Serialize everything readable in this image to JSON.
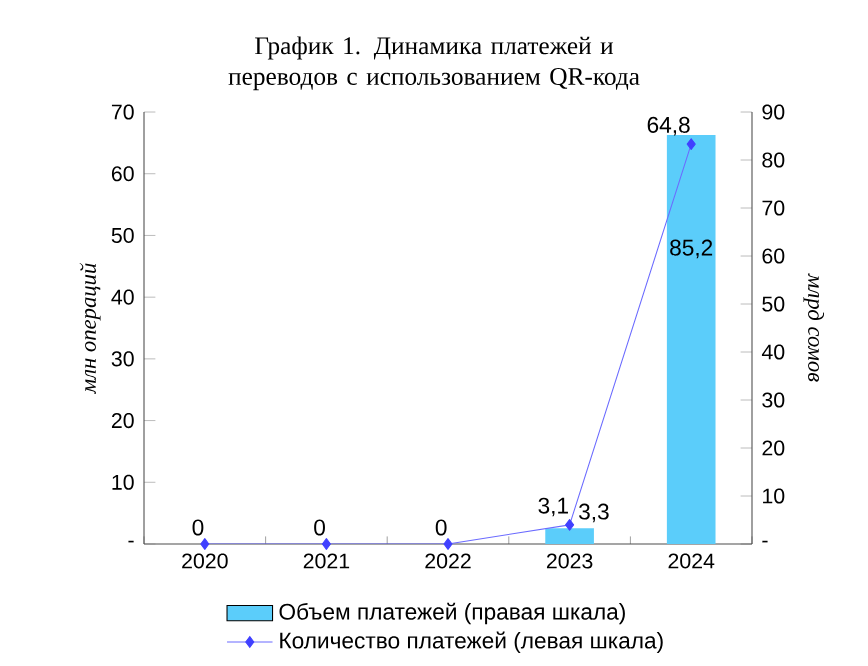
{
  "chart_data": {
    "type": "bar",
    "title": "График 1. Динамика платежей и переводов с использованием QR-кода",
    "ylabel": "млн операций",
    "y2label": "млрд сомов",
    "categories": [
      "2020",
      "2021",
      "2022",
      "2023",
      "2024"
    ],
    "series": [
      {
        "name": "Объем платежей (правая шкала)",
        "axis": "y2",
        "color": "#5bcdfa",
        "values": [
          0,
          0,
          0,
          3.3,
          85.2
        ],
        "value_labels": [
          null,
          null,
          null,
          "3,3",
          "85,2"
        ]
      },
      {
        "name": "Количество платежей (левая шкала)",
        "type": "line",
        "color": "#6b6bff",
        "marker": "diamond",
        "values": [
          0,
          0,
          0,
          3.1,
          64.8
        ],
        "value_labels": [
          "0",
          "0",
          "0",
          "3,1",
          "64,8"
        ]
      }
    ],
    "ylim": [
      0,
      70
    ],
    "yticks": [
      {
        "value": 0,
        "label": "-"
      },
      10,
      20,
      30,
      40,
      50,
      60,
      70
    ],
    "y2lim": [
      0,
      90
    ],
    "y2ticks": [
      {
        "value": 0,
        "label": "-"
      },
      10,
      20,
      30,
      40,
      50,
      60,
      70,
      80,
      90
    ],
    "legend": "bottom"
  }
}
